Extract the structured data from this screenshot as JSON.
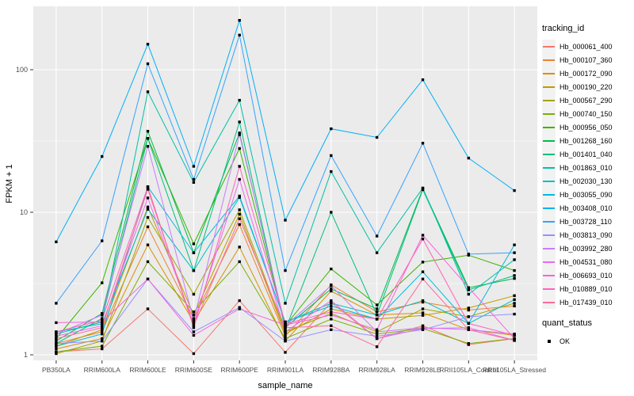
{
  "chart_data": {
    "type": "line",
    "title": "",
    "xlabel": "sample_name",
    "ylabel": "FPKM + 1",
    "y_scale": "log10",
    "y_ticks": [
      1,
      10,
      100
    ],
    "y_minor_ticks": [
      3.162,
      31.62
    ],
    "ylim": [
      1,
      280
    ],
    "grid": "on",
    "legend_position": "right",
    "legend_title": "tracking_id",
    "panel_bg": "#EBEBEB",
    "grid_color": "#FFFFFF",
    "tick_label_color": "#4D4D4D",
    "point_marker": "black-square",
    "categories": [
      "PB350LA",
      "RRIM600LA",
      "RRIM600LE",
      "RRIM600SE",
      "RRIM600PE",
      "RRIM901LA",
      "RRIM928BA",
      "RRIM928LA",
      "RRIM928LE",
      "RRII105LA_Control",
      "RRII105LA_Stressed"
    ],
    "series": [
      {
        "name": "Hb_000061_400",
        "color": "#F8766D",
        "values": [
          1.05,
          1.1,
          2.1,
          1.02,
          2.4,
          1.04,
          2.33,
          1.3,
          1.6,
          1.18,
          1.3
        ]
      },
      {
        "name": "Hb_000107_360",
        "color": "#EA8331",
        "values": [
          1.2,
          1.45,
          7.9,
          1.8,
          8.2,
          1.35,
          3.1,
          2.0,
          2.34,
          2.06,
          2.2
        ]
      },
      {
        "name": "Hb_000172_090",
        "color": "#D89000",
        "values": [
          1.1,
          1.3,
          5.9,
          1.7,
          5.7,
          1.25,
          2.8,
          1.9,
          1.97,
          1.5,
          1.37
        ]
      },
      {
        "name": "Hb_000190_220",
        "color": "#C09B00",
        "values": [
          1.15,
          1.5,
          10.9,
          1.9,
          9.7,
          1.4,
          2.1,
          1.78,
          1.89,
          2.13,
          2.6
        ]
      },
      {
        "name": "Hb_000567_290",
        "color": "#A3A500",
        "values": [
          1.02,
          1.25,
          9.2,
          2.66,
          10.4,
          1.45,
          1.95,
          1.45,
          2.1,
          1.85,
          2.3
        ]
      },
      {
        "name": "Hb_000740_150",
        "color": "#7CAE00",
        "values": [
          1.05,
          1.15,
          4.5,
          2.0,
          4.5,
          1.3,
          1.78,
          1.4,
          1.53,
          1.2,
          1.3
        ]
      },
      {
        "name": "Hb_000956_050",
        "color": "#39B600",
        "values": [
          1.3,
          3.2,
          33.0,
          6.0,
          28.0,
          1.6,
          4.0,
          2.24,
          4.47,
          5.0,
          3.9
        ]
      },
      {
        "name": "Hb_001268_160",
        "color": "#00BB4E",
        "values": [
          1.25,
          1.95,
          37.0,
          5.2,
          36.0,
          1.55,
          2.9,
          2.1,
          14.6,
          2.96,
          3.43
        ]
      },
      {
        "name": "Hb_001401_040",
        "color": "#00BF7D",
        "values": [
          1.2,
          1.8,
          33.0,
          3.9,
          43.0,
          1.5,
          10.0,
          1.9,
          14.4,
          2.86,
          3.6
        ]
      },
      {
        "name": "Hb_001863_010",
        "color": "#00C1A3",
        "values": [
          1.4,
          1.7,
          70.0,
          16.2,
          61.0,
          2.3,
          19.3,
          5.2,
          14.8,
          2.66,
          4.65
        ]
      },
      {
        "name": "Hb_002030_130",
        "color": "#00BFC4",
        "values": [
          1.45,
          1.65,
          10.5,
          3.9,
          12.7,
          1.7,
          2.3,
          1.9,
          2.4,
          1.66,
          2.44
        ]
      },
      {
        "name": "Hb_003055_090",
        "color": "#00BAE0",
        "values": [
          1.15,
          1.4,
          15.1,
          5.2,
          13.0,
          1.7,
          2.2,
          1.78,
          3.82,
          1.66,
          5.9
        ]
      },
      {
        "name": "Hb_003408_010",
        "color": "#00B0F6",
        "values": [
          6.2,
          24.6,
          151.0,
          21.0,
          222.0,
          8.8,
          38.5,
          33.5,
          85.0,
          24.0,
          14.2
        ]
      },
      {
        "name": "Hb_003728_110",
        "color": "#35A2FF",
        "values": [
          2.3,
          6.3,
          110.0,
          17.0,
          175.0,
          3.9,
          25.0,
          6.8,
          30.5,
          5.08,
          5.2
        ]
      },
      {
        "name": "Hb_003813_090",
        "color": "#9590FF",
        "values": [
          1.2,
          1.25,
          3.4,
          1.45,
          2.15,
          1.25,
          1.5,
          1.35,
          1.5,
          1.85,
          1.93
        ]
      },
      {
        "name": "Hb_003992_280",
        "color": "#C77CFF",
        "values": [
          1.4,
          1.9,
          29.0,
          1.75,
          35.0,
          1.6,
          3.05,
          1.45,
          1.55,
          1.5,
          1.4
        ]
      },
      {
        "name": "Hb_004531_080",
        "color": "#E76BF3",
        "values": [
          1.35,
          1.6,
          12.6,
          1.65,
          17.0,
          1.45,
          2.4,
          1.3,
          1.53,
          1.55,
          1.26
        ]
      },
      {
        "name": "Hb_006693_010",
        "color": "#FA62DB",
        "values": [
          1.68,
          1.7,
          3.4,
          1.37,
          2.1,
          1.62,
          1.9,
          1.5,
          6.9,
          2.96,
          1.3
        ]
      },
      {
        "name": "Hb_010889_010",
        "color": "#FF62BC",
        "values": [
          1.45,
          1.75,
          15.1,
          1.55,
          21.0,
          1.65,
          2.0,
          1.78,
          6.5,
          1.66,
          1.37
        ]
      },
      {
        "name": "Hb_017439_010",
        "color": "#FF6A98",
        "values": [
          1.3,
          1.55,
          14.5,
          1.6,
          9.0,
          1.55,
          1.6,
          1.14,
          3.4,
          1.5,
          1.26
        ]
      }
    ],
    "quant_legend": {
      "title": "quant_status",
      "items": [
        {
          "label": "OK",
          "marker": "black-square"
        }
      ]
    }
  }
}
